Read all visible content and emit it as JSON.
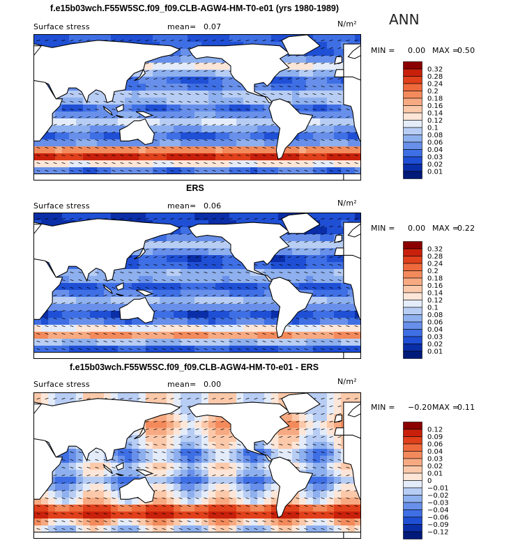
{
  "season": "ANN",
  "units": "N/m²",
  "field_label": "Surface stress",
  "mean_label": "mean=",
  "min_label": "MIN =",
  "max_label": "MAX =",
  "panels": [
    {
      "title": "f.e15b03wch.F55W5SC.f09_f09.CLB-AGW4-HM-T0-e01 (yrs 1980-1989)",
      "mean": "0.07",
      "min": "0.00",
      "max": "0.50",
      "levels": [
        "0.32",
        "0.28",
        "0.24",
        "0.2",
        "0.18",
        "0.16",
        "0.14",
        "0.12",
        "0.1",
        "0.08",
        "0.06",
        "0.04",
        "0.03",
        "0.02",
        "0.01"
      ],
      "colors": [
        "#8b0000",
        "#c8200b",
        "#e0401b",
        "#ee6a3c",
        "#f38a5c",
        "#f7aa82",
        "#fbc9aa",
        "#fde6d8",
        "#e4ecfa",
        "#b8cdf4",
        "#8eb0ee",
        "#6890ea",
        "#3f6fe4",
        "#1f4fd4",
        "#0a2ea8",
        "#001a7a"
      ],
      "chart_data": {
        "type": "heatmap",
        "title": "f.e15b03wch.F55W5SC.f09_f09.CLB-AGW4-HM-T0-e01 (yrs 1980-1989)",
        "zlabel": "Surface stress",
        "mean": 0.07,
        "min": 0.0,
        "max": 0.5,
        "contour_levels": [
          0.01,
          0.02,
          0.03,
          0.04,
          0.06,
          0.08,
          0.1,
          0.12,
          0.14,
          0.16,
          0.18,
          0.2,
          0.24,
          0.28,
          0.32
        ]
      }
    },
    {
      "title": "ERS",
      "mean": "0.06",
      "min": "0.00",
      "max": "0.22",
      "levels": [
        "0.32",
        "0.28",
        "0.24",
        "0.2",
        "0.18",
        "0.16",
        "0.14",
        "0.12",
        "0.1",
        "0.08",
        "0.06",
        "0.04",
        "0.03",
        "0.02",
        "0.01"
      ],
      "colors": [
        "#8b0000",
        "#c8200b",
        "#e0401b",
        "#ee6a3c",
        "#f38a5c",
        "#f7aa82",
        "#fbc9aa",
        "#fde6d8",
        "#e4ecfa",
        "#b8cdf4",
        "#8eb0ee",
        "#6890ea",
        "#3f6fe4",
        "#1f4fd4",
        "#0a2ea8",
        "#001a7a"
      ],
      "chart_data": {
        "type": "heatmap",
        "title": "ERS",
        "zlabel": "Surface stress",
        "mean": 0.06,
        "min": 0.0,
        "max": 0.22,
        "contour_levels": [
          0.01,
          0.02,
          0.03,
          0.04,
          0.06,
          0.08,
          0.1,
          0.12,
          0.14,
          0.16,
          0.18,
          0.2,
          0.24,
          0.28,
          0.32
        ]
      }
    },
    {
      "title": "f.e15b03wch.F55W5SC.f09_f09.CLB-AGW4-HM-T0-e01 - ERS",
      "mean": "0.00",
      "min": "−0.20",
      "max": "0.11",
      "levels": [
        "0.12",
        "0.09",
        "0.06",
        "0.04",
        "0.03",
        "0.02",
        "0.01",
        "0",
        "−0.01",
        "−0.02",
        "−0.03",
        "−0.04",
        "−0.06",
        "−0.09",
        "−0.12"
      ],
      "colors": [
        "#8b0000",
        "#c8200b",
        "#e0401b",
        "#ee6a3c",
        "#f38a5c",
        "#f7aa82",
        "#fbc9aa",
        "#fde6d8",
        "#e4ecfa",
        "#b8cdf4",
        "#8eb0ee",
        "#6890ea",
        "#3f6fe4",
        "#1f4fd4",
        "#0a2ea8",
        "#001a7a"
      ],
      "chart_data": {
        "type": "heatmap",
        "title": "f.e15b03wch.F55W5SC.f09_f09.CLB-AGW4-HM-T0-e01 - ERS",
        "zlabel": "Surface stress",
        "mean": 0.0,
        "min": -0.2,
        "max": 0.11,
        "contour_levels": [
          -0.12,
          -0.09,
          -0.06,
          -0.04,
          -0.03,
          -0.02,
          -0.01,
          0,
          0.01,
          0.02,
          0.03,
          0.04,
          0.06,
          0.09,
          0.12
        ]
      }
    }
  ]
}
